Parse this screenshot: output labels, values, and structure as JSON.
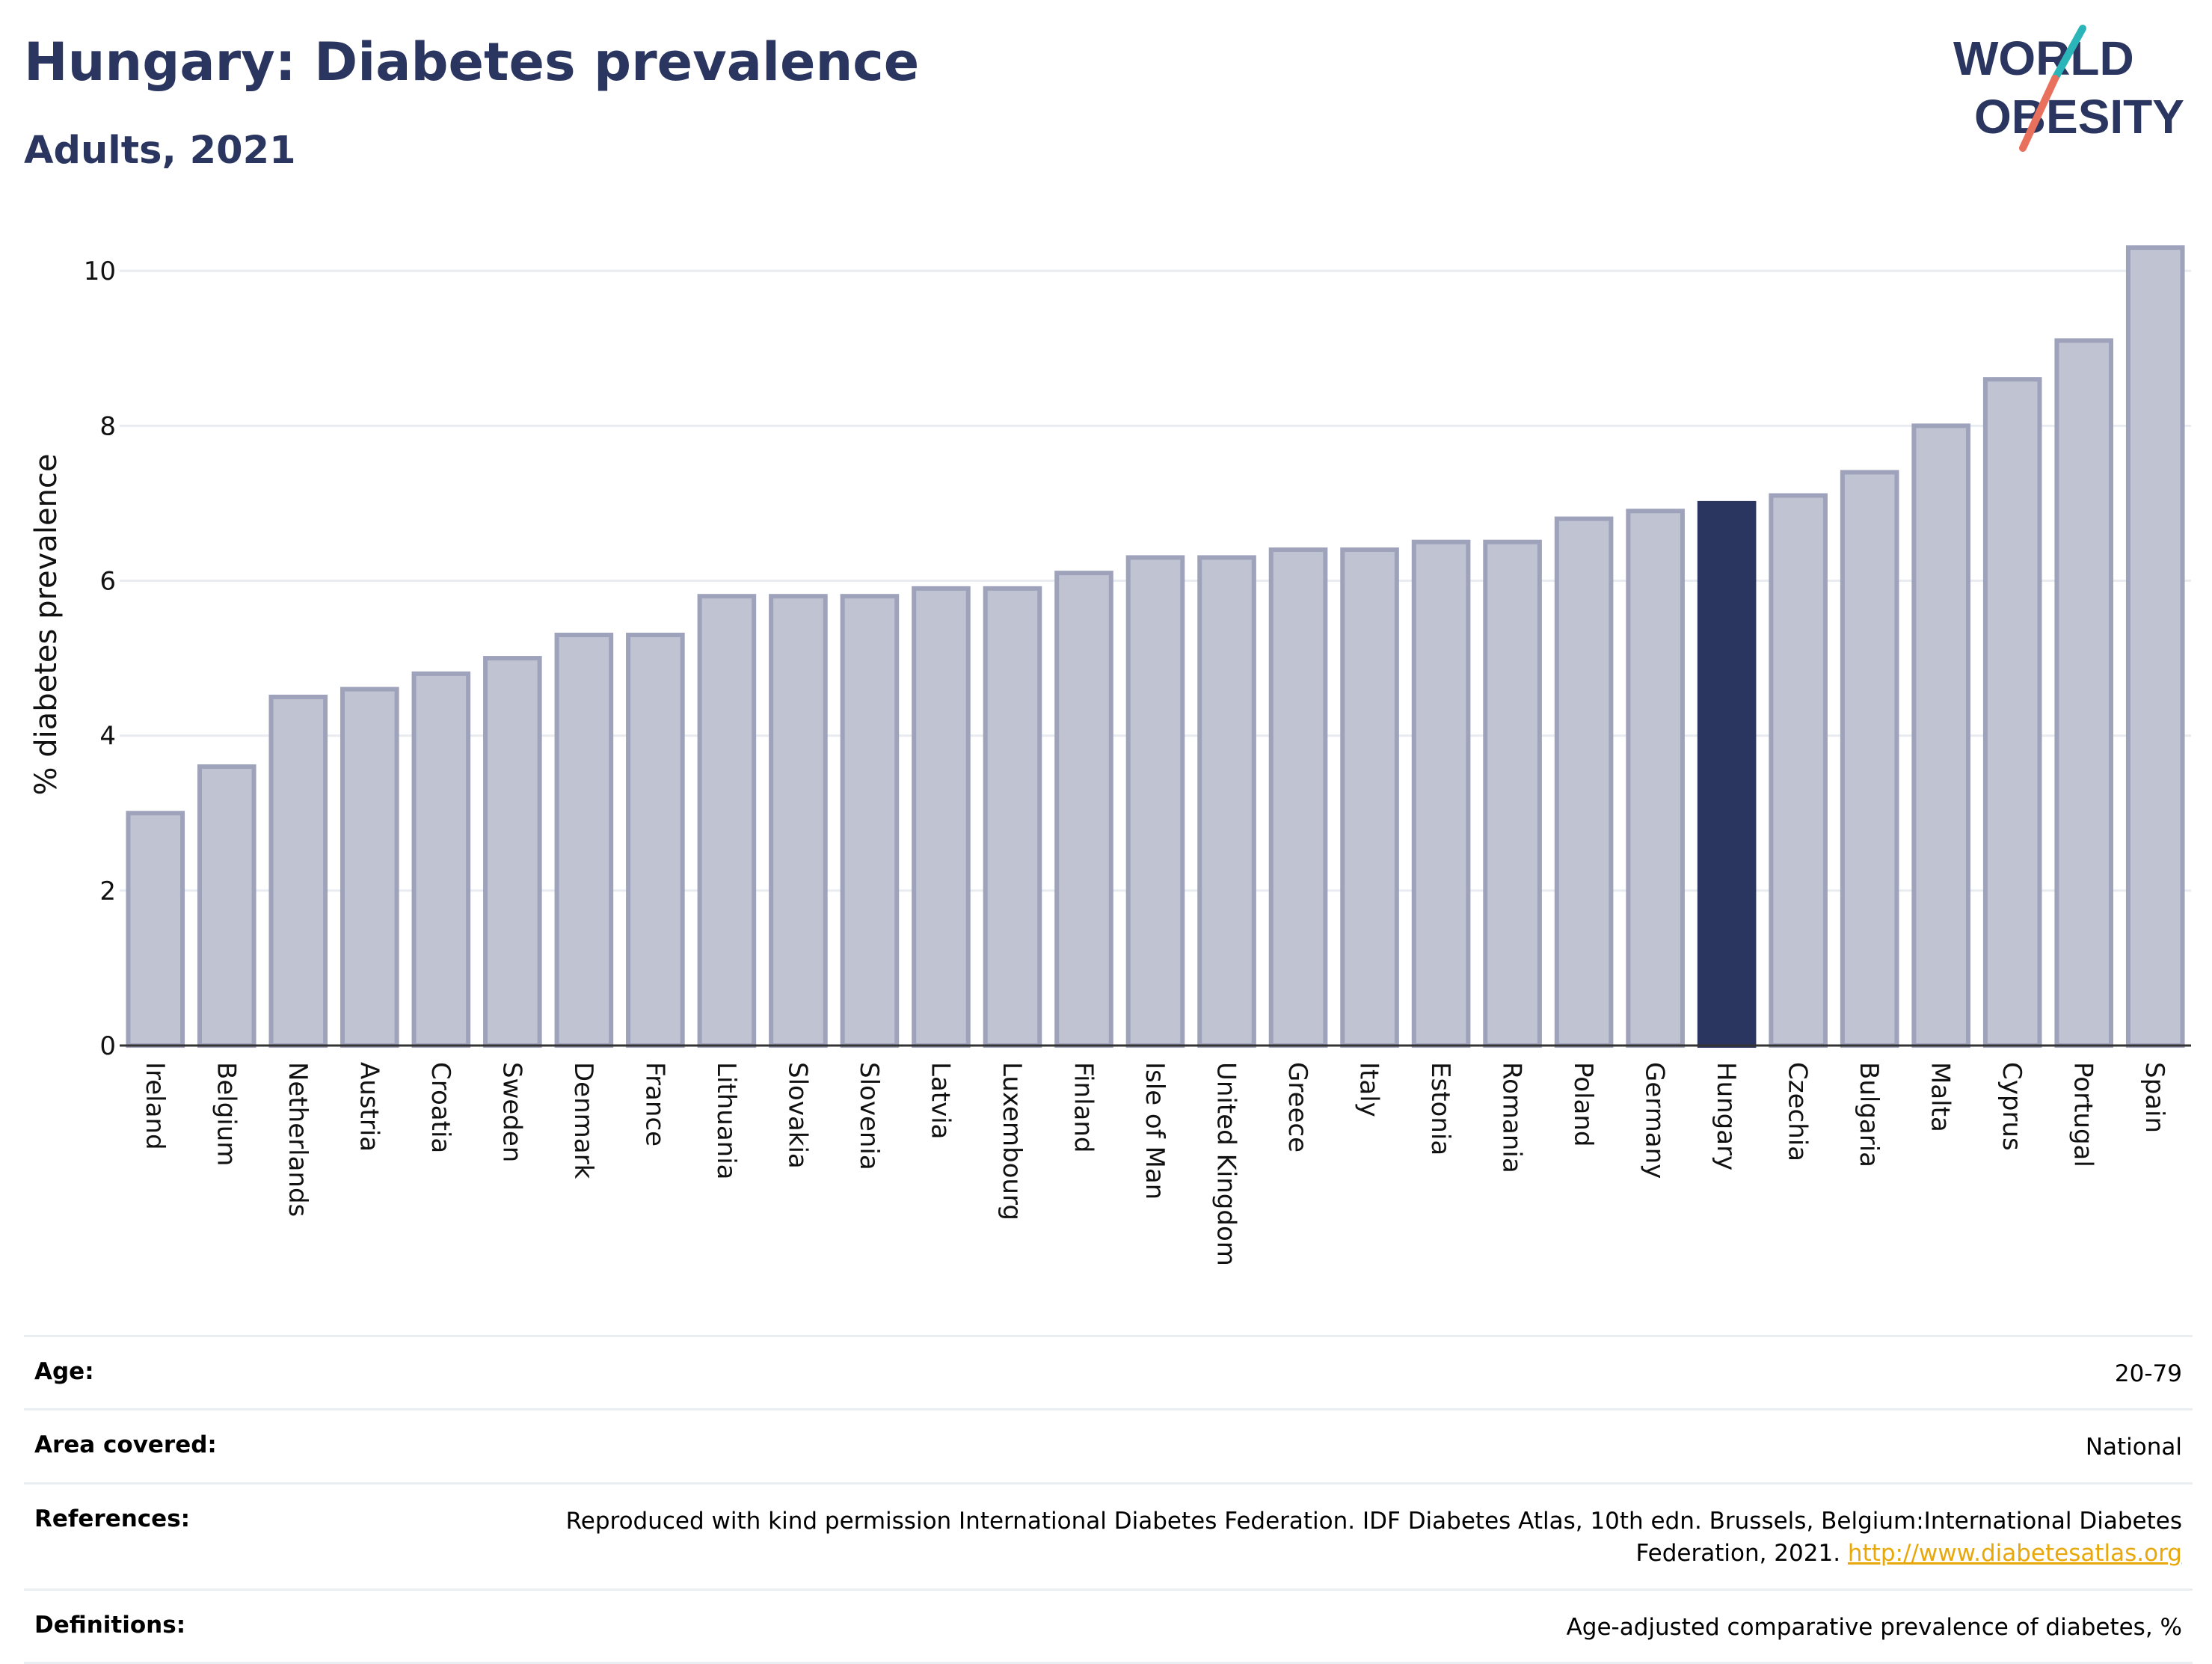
{
  "header": {
    "title": "Hungary: Diabetes prevalence",
    "subtitle": "Adults, 2021"
  },
  "logo": {
    "line1": "WORLD",
    "line2": "OBESITY",
    "colors": {
      "text": "#2a3560",
      "teal": "#2bb5b8",
      "coral": "#e8705c"
    }
  },
  "chart_data": {
    "type": "bar",
    "title": "",
    "xlabel": "",
    "ylabel": "% diabetes prevalence",
    "ylim": [
      0,
      10.6
    ],
    "yticks": [
      0,
      2,
      4,
      6,
      8,
      10
    ],
    "grid": true,
    "highlight": "Hungary",
    "colors": {
      "bar": "#c0c3d1",
      "bar_edge": "#9ea2bb",
      "highlight": "#2a3560"
    },
    "categories": [
      "Ireland",
      "Belgium",
      "Netherlands",
      "Austria",
      "Croatia",
      "Sweden",
      "Denmark",
      "France",
      "Lithuania",
      "Slovakia",
      "Slovenia",
      "Latvia",
      "Luxembourg",
      "Finland",
      "Isle of Man",
      "United Kingdom",
      "Greece",
      "Italy",
      "Estonia",
      "Romania",
      "Poland",
      "Germany",
      "Hungary",
      "Czechia",
      "Bulgaria",
      "Malta",
      "Cyprus",
      "Portugal",
      "Spain"
    ],
    "values": [
      3.0,
      3.6,
      4.5,
      4.6,
      4.8,
      5.0,
      5.3,
      5.3,
      5.8,
      5.8,
      5.8,
      5.9,
      5.9,
      6.1,
      6.3,
      6.3,
      6.4,
      6.4,
      6.5,
      6.5,
      6.8,
      6.9,
      7.0,
      7.1,
      7.4,
      8.0,
      8.6,
      9.1,
      10.3
    ]
  },
  "meta": {
    "age": {
      "label": "Age:",
      "value": "20-79"
    },
    "area": {
      "label": "Area covered:",
      "value": "National"
    },
    "references": {
      "label": "References:",
      "value": "Reproduced with kind permission International Diabetes Federation.  IDF Diabetes Atlas, 10th edn. Brussels, Belgium:International Diabetes Federation, 2021.",
      "link": "http://www.diabetesatlas.org"
    },
    "definitions": {
      "label": "Definitions:",
      "value": "Age-adjusted comparative prevalence of diabetes, %"
    }
  }
}
